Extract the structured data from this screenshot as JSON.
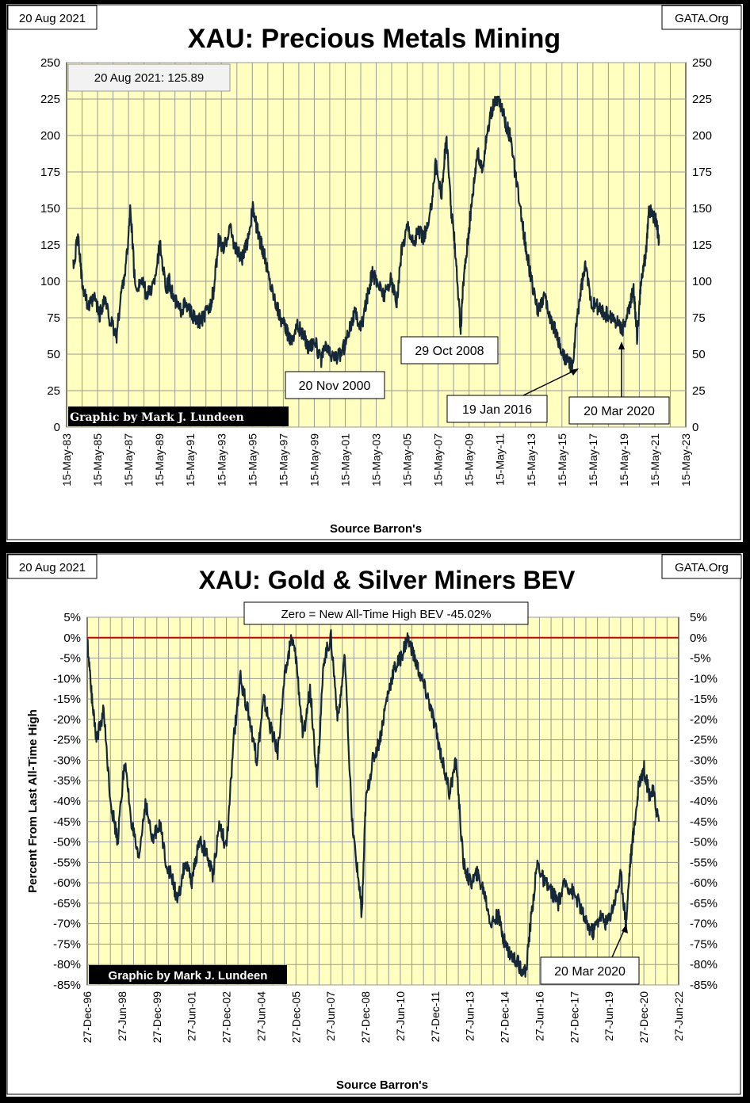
{
  "chart_data": [
    {
      "type": "line",
      "title": "XAU: Precious Metals Mining",
      "date_label": "20 Aug 2021",
      "source_label": "GATA.Org",
      "info_box": "20 Aug 2021:  125.89",
      "credit": "Graphic by Mark J. Lundeen",
      "xlabel": "Source Barron's",
      "ylim": [
        0,
        250
      ],
      "xlim": [
        1983.37,
        2023.37
      ],
      "yticks": [
        0,
        25,
        50,
        75,
        100,
        125,
        150,
        175,
        200,
        225,
        250
      ],
      "ytick_labels": [
        "0",
        "25",
        "50",
        "75",
        "100",
        "125",
        "150",
        "175",
        "200",
        "225",
        "250"
      ],
      "xticks": [
        "15-May-83",
        "15-May-85",
        "15-May-87",
        "15-May-89",
        "15-May-91",
        "15-May-93",
        "15-May-95",
        "15-May-97",
        "15-May-99",
        "15-May-01",
        "15-May-03",
        "15-May-05",
        "15-May-07",
        "15-May-09",
        "15-May-11",
        "15-May-13",
        "15-May-15",
        "15-May-17",
        "15-May-19",
        "15-May-21",
        "15-May-23"
      ],
      "series": [
        {
          "name": "XAU",
          "x": [
            1983.8,
            1984.1,
            1984.4,
            1984.8,
            1985.2,
            1985.5,
            1985.8,
            1986.2,
            1986.6,
            1986.9,
            1987.2,
            1987.5,
            1987.8,
            1988.2,
            1988.6,
            1989.0,
            1989.4,
            1989.8,
            1990.0,
            1990.3,
            1990.7,
            1991.0,
            1991.4,
            1991.8,
            1992.2,
            1992.6,
            1992.9,
            1993.2,
            1993.5,
            1993.9,
            1994.3,
            1994.7,
            1995.0,
            1995.4,
            1995.8,
            1996.1,
            1996.5,
            1996.9,
            1997.2,
            1997.6,
            1997.9,
            1998.3,
            1998.7,
            1999.0,
            1999.4,
            1999.8,
            2000.1,
            2000.4,
            2000.9,
            2001.3,
            2001.7,
            2002.0,
            2002.4,
            2002.8,
            2003.1,
            2003.5,
            2003.9,
            2004.3,
            2004.7,
            2005.0,
            2005.4,
            2005.8,
            2006.1,
            2006.4,
            2006.8,
            2007.2,
            2007.6,
            2007.9,
            2008.2,
            2008.5,
            2008.83,
            2009.0,
            2009.3,
            2009.6,
            2009.9,
            2010.2,
            2010.5,
            2010.9,
            2011.3,
            2011.7,
            2012.0,
            2012.4,
            2012.8,
            2013.1,
            2013.4,
            2013.8,
            2014.2,
            2014.6,
            2015.0,
            2015.4,
            2015.8,
            2016.05,
            2016.3,
            2016.6,
            2016.9,
            2017.3,
            2017.7,
            2018.1,
            2018.5,
            2018.9,
            2019.3,
            2019.7,
            2020.0,
            2020.22,
            2020.5,
            2020.8,
            2021.0,
            2021.3,
            2021.5,
            2021.64
          ],
          "y": [
            110,
            130,
            98,
            82,
            88,
            76,
            88,
            72,
            62,
            92,
            110,
            150,
            95,
            100,
            90,
            98,
            125,
            95,
            100,
            88,
            80,
            84,
            78,
            72,
            75,
            82,
            95,
            130,
            120,
            138,
            122,
            115,
            125,
            150,
            130,
            120,
            100,
            85,
            75,
            65,
            60,
            70,
            62,
            55,
            60,
            45,
            55,
            50,
            48,
            55,
            70,
            78,
            68,
            90,
            105,
            98,
            90,
            102,
            85,
            120,
            140,
            125,
            135,
            130,
            140,
            180,
            160,
            200,
            150,
            120,
            65,
            100,
            130,
            160,
            190,
            175,
            200,
            220,
            225,
            210,
            200,
            170,
            140,
            120,
            100,
            80,
            90,
            75,
            65,
            50,
            45,
            40,
            70,
            95,
            110,
            85,
            82,
            78,
            76,
            72,
            68,
            80,
            95,
            62,
            100,
            120,
            150,
            145,
            140,
            126
          ]
        }
      ],
      "annotations": [
        {
          "text": "20 Nov 2000",
          "x": 2000.88,
          "y": 42
        },
        {
          "text": "29 Oct 2008",
          "x": 2008.83,
          "y": 65
        },
        {
          "text": "19 Jan 2016",
          "x": 2016.05,
          "y": 40
        },
        {
          "text": "20 Mar 2020",
          "x": 2020.22,
          "y": 62
        }
      ]
    },
    {
      "type": "line",
      "title": "XAU: Gold & Silver Miners BEV",
      "date_label": "20 Aug 2021",
      "source_label": "GATA.Org",
      "info_box": "Zero = New All-Time High BEV -45.02%",
      "credit": "Graphic by Mark J. Lundeen",
      "xlabel": "Source Barron's",
      "ylabel": "Percent  From  Last  All-Time  High",
      "ylim": [
        -85,
        5
      ],
      "xlim": [
        1996.99,
        2022.49
      ],
      "yticks": [
        5,
        0,
        -5,
        -10,
        -15,
        -20,
        -25,
        -30,
        -35,
        -40,
        -45,
        -50,
        -55,
        -60,
        -65,
        -70,
        -75,
        -80,
        -85
      ],
      "ytick_labels": [
        "5%",
        "0%",
        "-5%",
        "-10%",
        "-15%",
        "-20%",
        "-25%",
        "-30%",
        "-35%",
        "-40%",
        "-45%",
        "-50%",
        "-55%",
        "-60%",
        "-65%",
        "-70%",
        "-75%",
        "-80%",
        "-85%"
      ],
      "xticks": [
        "27-Dec-96",
        "27-Jun-98",
        "27-Dec-99",
        "27-Jun-01",
        "27-Dec-02",
        "27-Jun-04",
        "27-Dec-05",
        "27-Jun-07",
        "27-Dec-08",
        "27-Jun-10",
        "27-Dec-11",
        "27-Jun-13",
        "27-Dec-14",
        "27-Jun-16",
        "27-Dec-17",
        "27-Jun-19",
        "27-Dec-20",
        "27-Jun-22"
      ],
      "series": [
        {
          "name": "BEV",
          "x": [
            1997.0,
            1997.2,
            1997.4,
            1997.7,
            1998.0,
            1998.3,
            1998.6,
            1998.9,
            1999.2,
            1999.5,
            1999.8,
            2000.1,
            2000.4,
            2000.7,
            2000.9,
            2001.2,
            2001.5,
            2001.8,
            2002.1,
            2002.4,
            2002.7,
            2003.0,
            2003.3,
            2003.6,
            2004.0,
            2004.3,
            2004.6,
            2004.9,
            2005.2,
            2005.5,
            2005.8,
            2006.0,
            2006.3,
            2006.6,
            2006.9,
            2007.2,
            2007.5,
            2007.8,
            2008.1,
            2008.4,
            2008.7,
            2008.83,
            2009.0,
            2009.3,
            2009.6,
            2009.9,
            2010.2,
            2010.5,
            2010.8,
            2011.1,
            2011.4,
            2011.7,
            2012.0,
            2012.3,
            2012.6,
            2012.9,
            2013.2,
            2013.5,
            2013.8,
            2014.1,
            2014.4,
            2014.7,
            2015.0,
            2015.3,
            2015.6,
            2015.9,
            2016.1,
            2016.4,
            2016.7,
            2017.0,
            2017.3,
            2017.6,
            2017.9,
            2018.2,
            2018.5,
            2018.8,
            2019.1,
            2019.4,
            2019.7,
            2020.0,
            2020.22,
            2020.4,
            2020.6,
            2020.8,
            2021.0,
            2021.2,
            2021.4,
            2021.64
          ],
          "y": [
            -1,
            -15,
            -25,
            -18,
            -40,
            -50,
            -30,
            -45,
            -55,
            -40,
            -50,
            -45,
            -55,
            -60,
            -65,
            -55,
            -60,
            -50,
            -52,
            -58,
            -45,
            -52,
            -25,
            -10,
            -20,
            -30,
            -15,
            -22,
            -28,
            -10,
            0,
            -5,
            -25,
            -12,
            -35,
            -5,
            0,
            -20,
            -5,
            -45,
            -60,
            -68,
            -40,
            -30,
            -25,
            -15,
            -8,
            -5,
            0,
            -5,
            -10,
            -15,
            -22,
            -30,
            -38,
            -30,
            -55,
            -60,
            -58,
            -62,
            -70,
            -68,
            -75,
            -78,
            -80,
            -82,
            -70,
            -55,
            -60,
            -62,
            -65,
            -60,
            -62,
            -65,
            -70,
            -72,
            -68,
            -70,
            -65,
            -58,
            -70,
            -55,
            -45,
            -35,
            -32,
            -38,
            -38,
            -45
          ]
        }
      ],
      "annotations": [
        {
          "text": "20 Mar 2020",
          "x": 2020.22,
          "y": -70
        }
      ],
      "reference_line": {
        "y": 0,
        "color": "#cc0000"
      }
    }
  ]
}
